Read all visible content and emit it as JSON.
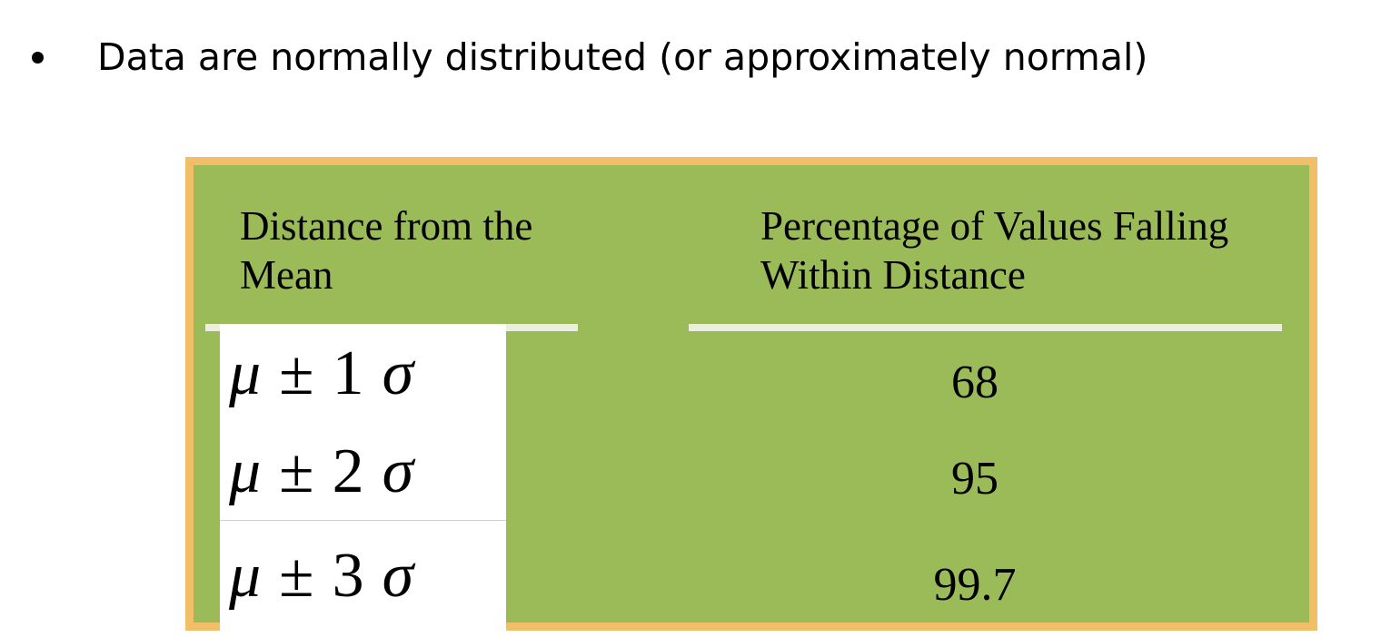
{
  "bullet": {
    "text": "Data are normally distributed (or approximately normal)"
  },
  "table": {
    "header_left": "Distance from the Mean",
    "header_right": "Percentage of Values Falling Within Distance",
    "rows": [
      {
        "mu": "μ",
        "pm": "±",
        "k": "1",
        "sigma": "σ",
        "percent": "68"
      },
      {
        "mu": "μ",
        "pm": "±",
        "k": "2",
        "sigma": "σ",
        "percent": "95"
      },
      {
        "mu": "μ",
        "pm": "±",
        "k": "3",
        "sigma": "σ",
        "percent": "99.7"
      }
    ]
  },
  "colors": {
    "table_fill": "#9bbb59",
    "table_border": "#f2bf68",
    "rule": "#ecefe0"
  }
}
